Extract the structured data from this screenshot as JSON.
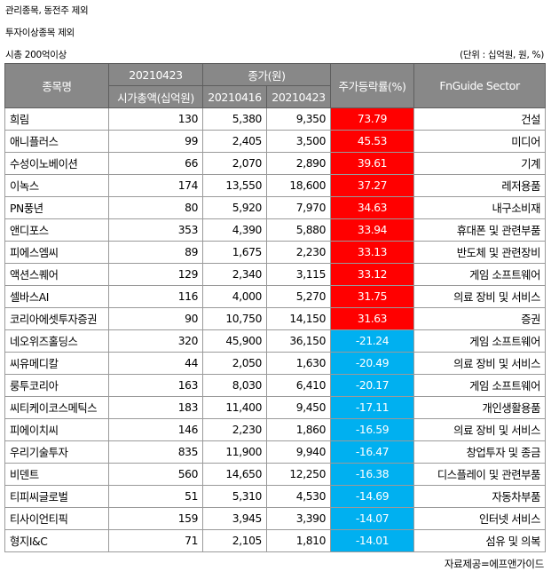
{
  "notes": [
    "관리종목, 동전주 제외",
    "투자이상종목 제외",
    "시총 200억이상"
  ],
  "unit": "(단위 : 십억원, 원, %)",
  "source": "자료제공=에프앤가이드",
  "header": {
    "name": "종목명",
    "date_top": "20210423",
    "mcap": "시가총액(십억원)",
    "close_group": "종가(원)",
    "close_date1": "20210416",
    "close_date2": "20210423",
    "change": "주가등락률(%)",
    "sector": "FnGuide Sector"
  },
  "colors": {
    "up": "#ff0000",
    "down": "#00b0f0",
    "header_bg": "#888888"
  },
  "rows": [
    {
      "name": "희림",
      "mcap": "130",
      "p1": "5,380",
      "p2": "9,350",
      "chg": "73.79",
      "sector": "건설",
      "dir": "up"
    },
    {
      "name": "애니플러스",
      "mcap": "99",
      "p1": "2,405",
      "p2": "3,500",
      "chg": "45.53",
      "sector": "미디어",
      "dir": "up"
    },
    {
      "name": "수성이노베이션",
      "mcap": "66",
      "p1": "2,070",
      "p2": "2,890",
      "chg": "39.61",
      "sector": "기계",
      "dir": "up"
    },
    {
      "name": "이녹스",
      "mcap": "174",
      "p1": "13,550",
      "p2": "18,600",
      "chg": "37.27",
      "sector": "레저용품",
      "dir": "up"
    },
    {
      "name": "PN풍년",
      "mcap": "80",
      "p1": "5,920",
      "p2": "7,970",
      "chg": "34.63",
      "sector": "내구소비재",
      "dir": "up"
    },
    {
      "name": "앤디포스",
      "mcap": "353",
      "p1": "4,390",
      "p2": "5,880",
      "chg": "33.94",
      "sector": "휴대폰 및 관련부품",
      "dir": "up"
    },
    {
      "name": "피에스엠씨",
      "mcap": "89",
      "p1": "1,675",
      "p2": "2,230",
      "chg": "33.13",
      "sector": "반도체 및 관련장비",
      "dir": "up"
    },
    {
      "name": "액션스퀘어",
      "mcap": "129",
      "p1": "2,340",
      "p2": "3,115",
      "chg": "33.12",
      "sector": "게임 소프트웨어",
      "dir": "up"
    },
    {
      "name": "셀바스AI",
      "mcap": "116",
      "p1": "4,000",
      "p2": "5,270",
      "chg": "31.75",
      "sector": "의료 장비 및 서비스",
      "dir": "up"
    },
    {
      "name": "코리아에셋투자증권",
      "mcap": "90",
      "p1": "10,750",
      "p2": "14,150",
      "chg": "31.63",
      "sector": "증권",
      "dir": "up"
    },
    {
      "name": "네오위즈홀딩스",
      "mcap": "320",
      "p1": "45,900",
      "p2": "36,150",
      "chg": "-21.24",
      "sector": "게임 소프트웨어",
      "dir": "down"
    },
    {
      "name": "씨유메디칼",
      "mcap": "44",
      "p1": "2,050",
      "p2": "1,630",
      "chg": "-20.49",
      "sector": "의료 장비 및 서비스",
      "dir": "down"
    },
    {
      "name": "룽투코리아",
      "mcap": "163",
      "p1": "8,030",
      "p2": "6,410",
      "chg": "-20.17",
      "sector": "게임 소프트웨어",
      "dir": "down"
    },
    {
      "name": "씨티케이코스메틱스",
      "mcap": "183",
      "p1": "11,400",
      "p2": "9,450",
      "chg": "-17.11",
      "sector": "개인생활용품",
      "dir": "down"
    },
    {
      "name": "피에이치씨",
      "mcap": "146",
      "p1": "2,230",
      "p2": "1,860",
      "chg": "-16.59",
      "sector": "의료 장비 및 서비스",
      "dir": "down"
    },
    {
      "name": "우리기술투자",
      "mcap": "835",
      "p1": "11,900",
      "p2": "9,940",
      "chg": "-16.47",
      "sector": "창업투자 및 종금",
      "dir": "down"
    },
    {
      "name": "비덴트",
      "mcap": "560",
      "p1": "14,650",
      "p2": "12,250",
      "chg": "-16.38",
      "sector": "디스플레이 및 관련부품",
      "dir": "down"
    },
    {
      "name": "티피씨글로벌",
      "mcap": "51",
      "p1": "5,310",
      "p2": "4,530",
      "chg": "-14.69",
      "sector": "자동차부품",
      "dir": "down"
    },
    {
      "name": "티사이언티픽",
      "mcap": "159",
      "p1": "3,945",
      "p2": "3,390",
      "chg": "-14.07",
      "sector": "인터넷 서비스",
      "dir": "down"
    },
    {
      "name": "형지I&C",
      "mcap": "71",
      "p1": "2,105",
      "p2": "1,810",
      "chg": "-14.01",
      "sector": "섬유 및 의복",
      "dir": "down"
    }
  ]
}
